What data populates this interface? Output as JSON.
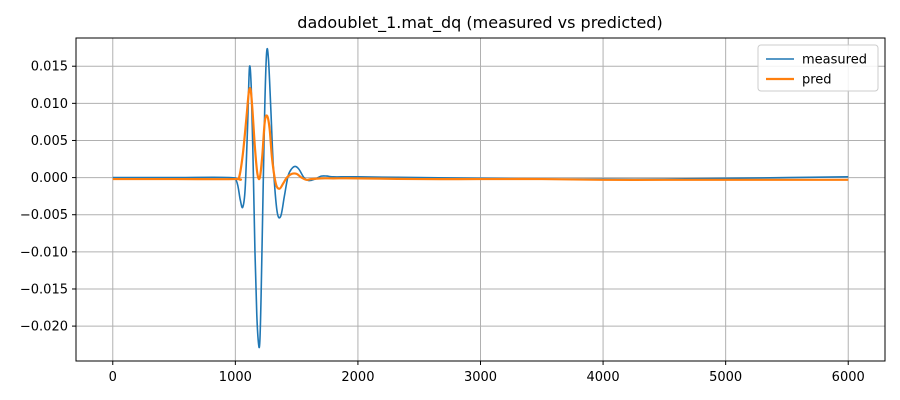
{
  "chart_data": {
    "type": "line",
    "title": "dadoublet_1.mat_dq  (measured vs predicted)",
    "xlabel": "",
    "ylabel": "",
    "xlim": [
      -300,
      6300
    ],
    "ylim": [
      -0.0247,
      0.0188
    ],
    "x_ticks": [
      0,
      1000,
      2000,
      3000,
      4000,
      5000,
      6000
    ],
    "x_tick_labels": [
      "0",
      "1000",
      "2000",
      "3000",
      "4000",
      "5000",
      "6000"
    ],
    "y_ticks": [
      0.015,
      0.01,
      0.005,
      0.0,
      -0.005,
      -0.01,
      -0.015,
      -0.02
    ],
    "y_tick_labels": [
      "0.015",
      "0.010",
      "0.005",
      "0.000",
      "−0.005",
      "−0.010",
      "−0.015",
      "−0.020"
    ],
    "grid": true,
    "legend_position": "top-right",
    "series": [
      {
        "name": "measured",
        "color": "#1f77b4",
        "x": [
          0,
          500,
          950,
          1010,
          1040,
          1060,
          1080,
          1100,
          1115,
          1130,
          1145,
          1160,
          1175,
          1190,
          1200,
          1210,
          1225,
          1240,
          1255,
          1270,
          1290,
          1310,
          1340,
          1370,
          1400,
          1430,
          1460,
          1490,
          1520,
          1560,
          1600,
          1650,
          1700,
          1750,
          1800,
          2000,
          2500,
          3000,
          3500,
          4000,
          4500,
          5000,
          5500,
          6000
        ],
        "y": [
          0.0,
          0.0,
          0.0,
          -0.0005,
          -0.003,
          -0.004,
          -0.0015,
          0.007,
          0.0148,
          0.012,
          0.002,
          -0.01,
          -0.0185,
          -0.0225,
          -0.022,
          -0.016,
          -0.003,
          0.0095,
          0.0168,
          0.016,
          0.009,
          0.0015,
          -0.0045,
          -0.0052,
          -0.0025,
          0.0002,
          0.0012,
          0.0015,
          0.0011,
          0.0,
          -0.0004,
          -0.0002,
          0.0002,
          0.0002,
          0.0001,
          0.0001,
          0.0,
          -0.0001,
          -0.0002,
          -0.0002,
          -0.0002,
          -0.0001,
          0.0,
          0.0001
        ]
      },
      {
        "name": "pred",
        "color": "#ff7f0e",
        "x": [
          0,
          500,
          1000,
          1030,
          1060,
          1090,
          1110,
          1125,
          1140,
          1160,
          1180,
          1200,
          1220,
          1240,
          1260,
          1280,
          1300,
          1330,
          1360,
          1390,
          1420,
          1460,
          1500,
          1540,
          1580,
          1620,
          1700,
          1800,
          2000,
          2500,
          3000,
          3500,
          4000,
          4500,
          5000,
          5500,
          6000
        ],
        "y": [
          -0.0002,
          -0.0002,
          -0.0002,
          0.0,
          0.003,
          0.008,
          0.0115,
          0.0118,
          0.009,
          0.004,
          0.0005,
          0.0,
          0.003,
          0.0075,
          0.0083,
          0.0065,
          0.0025,
          -0.0008,
          -0.0015,
          -0.0008,
          0.0,
          0.0005,
          0.0005,
          0.0,
          -0.0003,
          -0.0002,
          -0.0001,
          -0.0001,
          -0.0001,
          -0.0002,
          -0.0002,
          -0.0002,
          -0.0003,
          -0.0003,
          -0.0003,
          -0.0003,
          -0.0003
        ]
      }
    ]
  }
}
